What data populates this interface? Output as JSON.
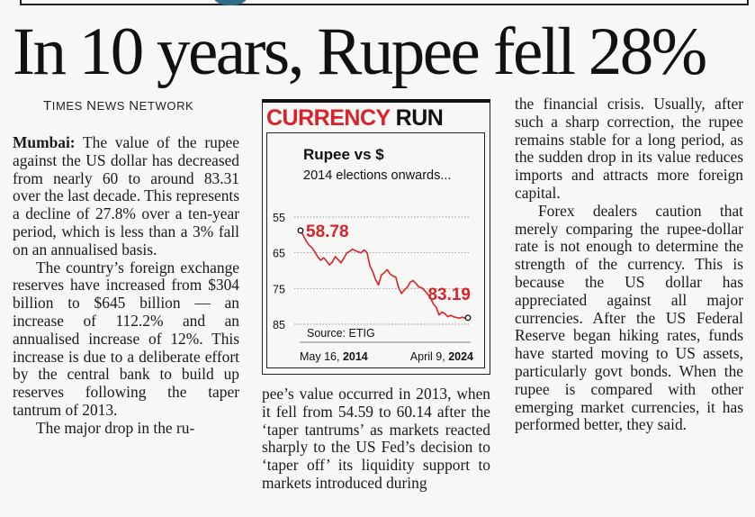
{
  "headline": "In 10 years, Rupee fell 28%",
  "byline": {
    "first": "T",
    "first_rest": "IMES ",
    "second": "N",
    "second_rest": "EWS ",
    "third": "N",
    "third_rest": "ETWORK"
  },
  "article": {
    "dateline": "Mumbai:",
    "col1_p1": " The value of the rupee against the US dollar has decreased from nearly 60 to around 83.31 over the last decade. This represents a decline of 27.8% over a ten-year period, which is less than a 3% fall on an annualised basis.",
    "col1_p2": "The country’s foreign exchange reserves have increased from $304 billion to $645 billion — an increase of 112.2% and an annualised increase of 12%. This increase is due to a deliberate effort by the central bank to build up reserves following the taper tantrum of 2013.",
    "col1_p3": "The major drop in the ru-",
    "col2_p1": "pee’s value occurred in 2013, when it fell from 54.59 to 60.14 after the ‘taper tantrums’ as markets reacted sharply to the US Fed’s decision to ‘taper off’ its liquidity support to markets introduced during",
    "col3_p1": "the financial crisis. Usually, after such a sharp correction, the rupee remains stable for a long period, as the sudden drop in its value reduces imports and attracts more foreign capital.",
    "col3_p2": "Forex dealers caution that merely comparing the rupee-dollar rate is not enough to determine the strength of the currency. This is because the US dollar has appreciated against all major currencies. After the US Federal Reserve began hiking rates, funds have started moving to US assets, particularly govt bonds. When the rupee is compared with other emerging market currencies, it has performed better, they said."
  },
  "infobox": {
    "title_red": "CURRENCY ",
    "title_black": "RUN"
  },
  "chart_data": {
    "type": "line",
    "title": "Rupee vs $",
    "subtitle": "2014 elections onwards...",
    "x_start_label": "May 16, ",
    "x_start_year": "2014",
    "x_end_label": "April 9, ",
    "x_end_year": "2024",
    "y_ticks": [
      55,
      65,
      75,
      85
    ],
    "ylim": [
      55,
      85
    ],
    "y_inverted": true,
    "start_value": 58.78,
    "end_value": 83.19,
    "start_label": "58.78",
    "end_label": "83.19",
    "source": "Source: ETIG",
    "line_color": "#d9232a",
    "label_color": "#d9232a",
    "series": [
      58.78,
      60.2,
      61.8,
      62.9,
      63.6,
      64.8,
      66.2,
      67.1,
      66.4,
      67.3,
      68.4,
      67.6,
      66.1,
      66.9,
      67.8,
      66.5,
      65.1,
      64.6,
      64.0,
      64.4,
      64.7,
      65.0,
      64.2,
      64.9,
      68.6,
      70.3,
      72.5,
      74.0,
      71.2,
      70.6,
      69.7,
      70.9,
      71.5,
      71.8,
      74.8,
      76.4,
      75.4,
      74.6,
      73.2,
      72.8,
      73.6,
      74.6,
      74.8,
      75.6,
      76.5,
      77.6,
      79.3,
      80.2,
      82.4,
      81.6,
      82.0,
      82.9,
      82.5,
      82.9,
      83.1,
      83.3,
      83.0,
      83.3,
      83.19
    ]
  }
}
